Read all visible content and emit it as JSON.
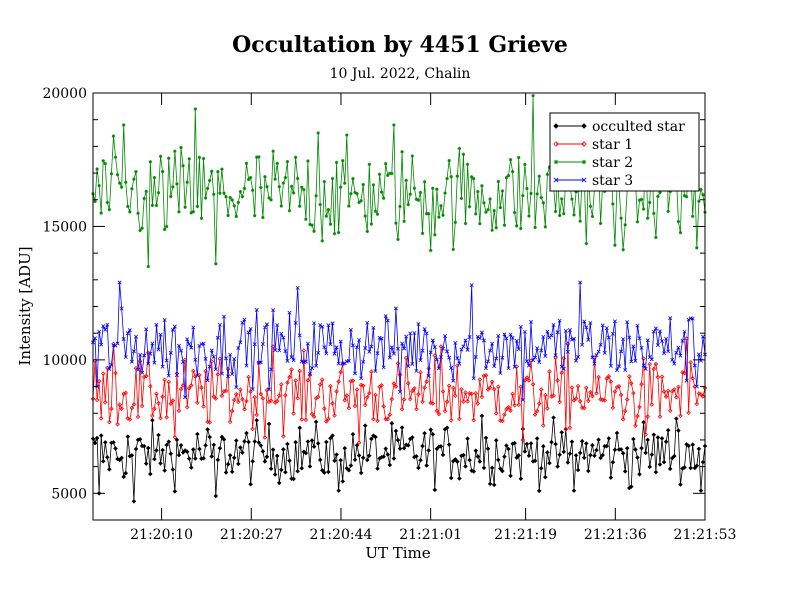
{
  "chart_data": {
    "type": "line",
    "title": "Occultation by 4451 Grieve",
    "subtitle": "10 Jul. 2022, Chalin",
    "xlabel": "UT Time",
    "ylabel": "Intensity [ADU]",
    "xlim": [
      "21:19:57",
      "21:21:53"
    ],
    "ylim": [
      4000,
      20000
    ],
    "x_ticks": [
      "21:20:10",
      "21:20:27",
      "21:20:44",
      "21:21:01",
      "21:21:19",
      "21:21:36",
      "21:21:53"
    ],
    "y_ticks": [
      5000,
      10000,
      15000,
      20000
    ],
    "legend_position": "top-right",
    "grid": false,
    "x_start": "21:19:57",
    "x_end": "21:21:53",
    "n_points": 300,
    "series": [
      {
        "name": "occulted star",
        "color": "#000000",
        "marker": "diamond-filled",
        "mean": 6500,
        "spread": 550,
        "extremes": [
          [
            3,
            5000
          ],
          [
            20,
            4700
          ],
          [
            60,
            4900
          ],
          [
            120,
            5100
          ],
          [
            190,
            7900
          ],
          [
            235,
            5100
          ],
          [
            262,
            5200
          ],
          [
            285,
            7800
          ],
          [
            297,
            5100
          ]
        ],
        "values": []
      },
      {
        "name": "star 1",
        "color": "#ff0000",
        "marker": "diamond-open",
        "mean": 8700,
        "spread": 650,
        "extremes": [
          [
            10,
            10600
          ],
          [
            40,
            7100
          ],
          [
            88,
            10500
          ],
          [
            130,
            6900
          ],
          [
            170,
            10500
          ],
          [
            210,
            7000
          ],
          [
            232,
            10600
          ],
          [
            270,
            7200
          ],
          [
            290,
            10800
          ]
        ],
        "values": []
      },
      {
        "name": "star 2",
        "color": "#008800",
        "marker": "asterisk",
        "mean": 16200,
        "spread": 900,
        "extremes": [
          [
            15,
            18800
          ],
          [
            27,
            13500
          ],
          [
            50,
            19400
          ],
          [
            60,
            13600
          ],
          [
            110,
            18500
          ],
          [
            147,
            18800
          ],
          [
            165,
            14100
          ],
          [
            215,
            19900
          ],
          [
            255,
            14300
          ],
          [
            280,
            19000
          ],
          [
            295,
            14200
          ]
        ],
        "values": []
      },
      {
        "name": "star 3",
        "color": "#0000ff",
        "marker": "x",
        "mean": 10500,
        "spread": 650,
        "extremes": [
          [
            2,
            9000
          ],
          [
            13,
            12900
          ],
          [
            45,
            8600
          ],
          [
            100,
            12700
          ],
          [
            150,
            8800
          ],
          [
            185,
            12800
          ],
          [
            210,
            8500
          ],
          [
            238,
            12900
          ],
          [
            295,
            9000
          ]
        ],
        "values": []
      }
    ]
  }
}
